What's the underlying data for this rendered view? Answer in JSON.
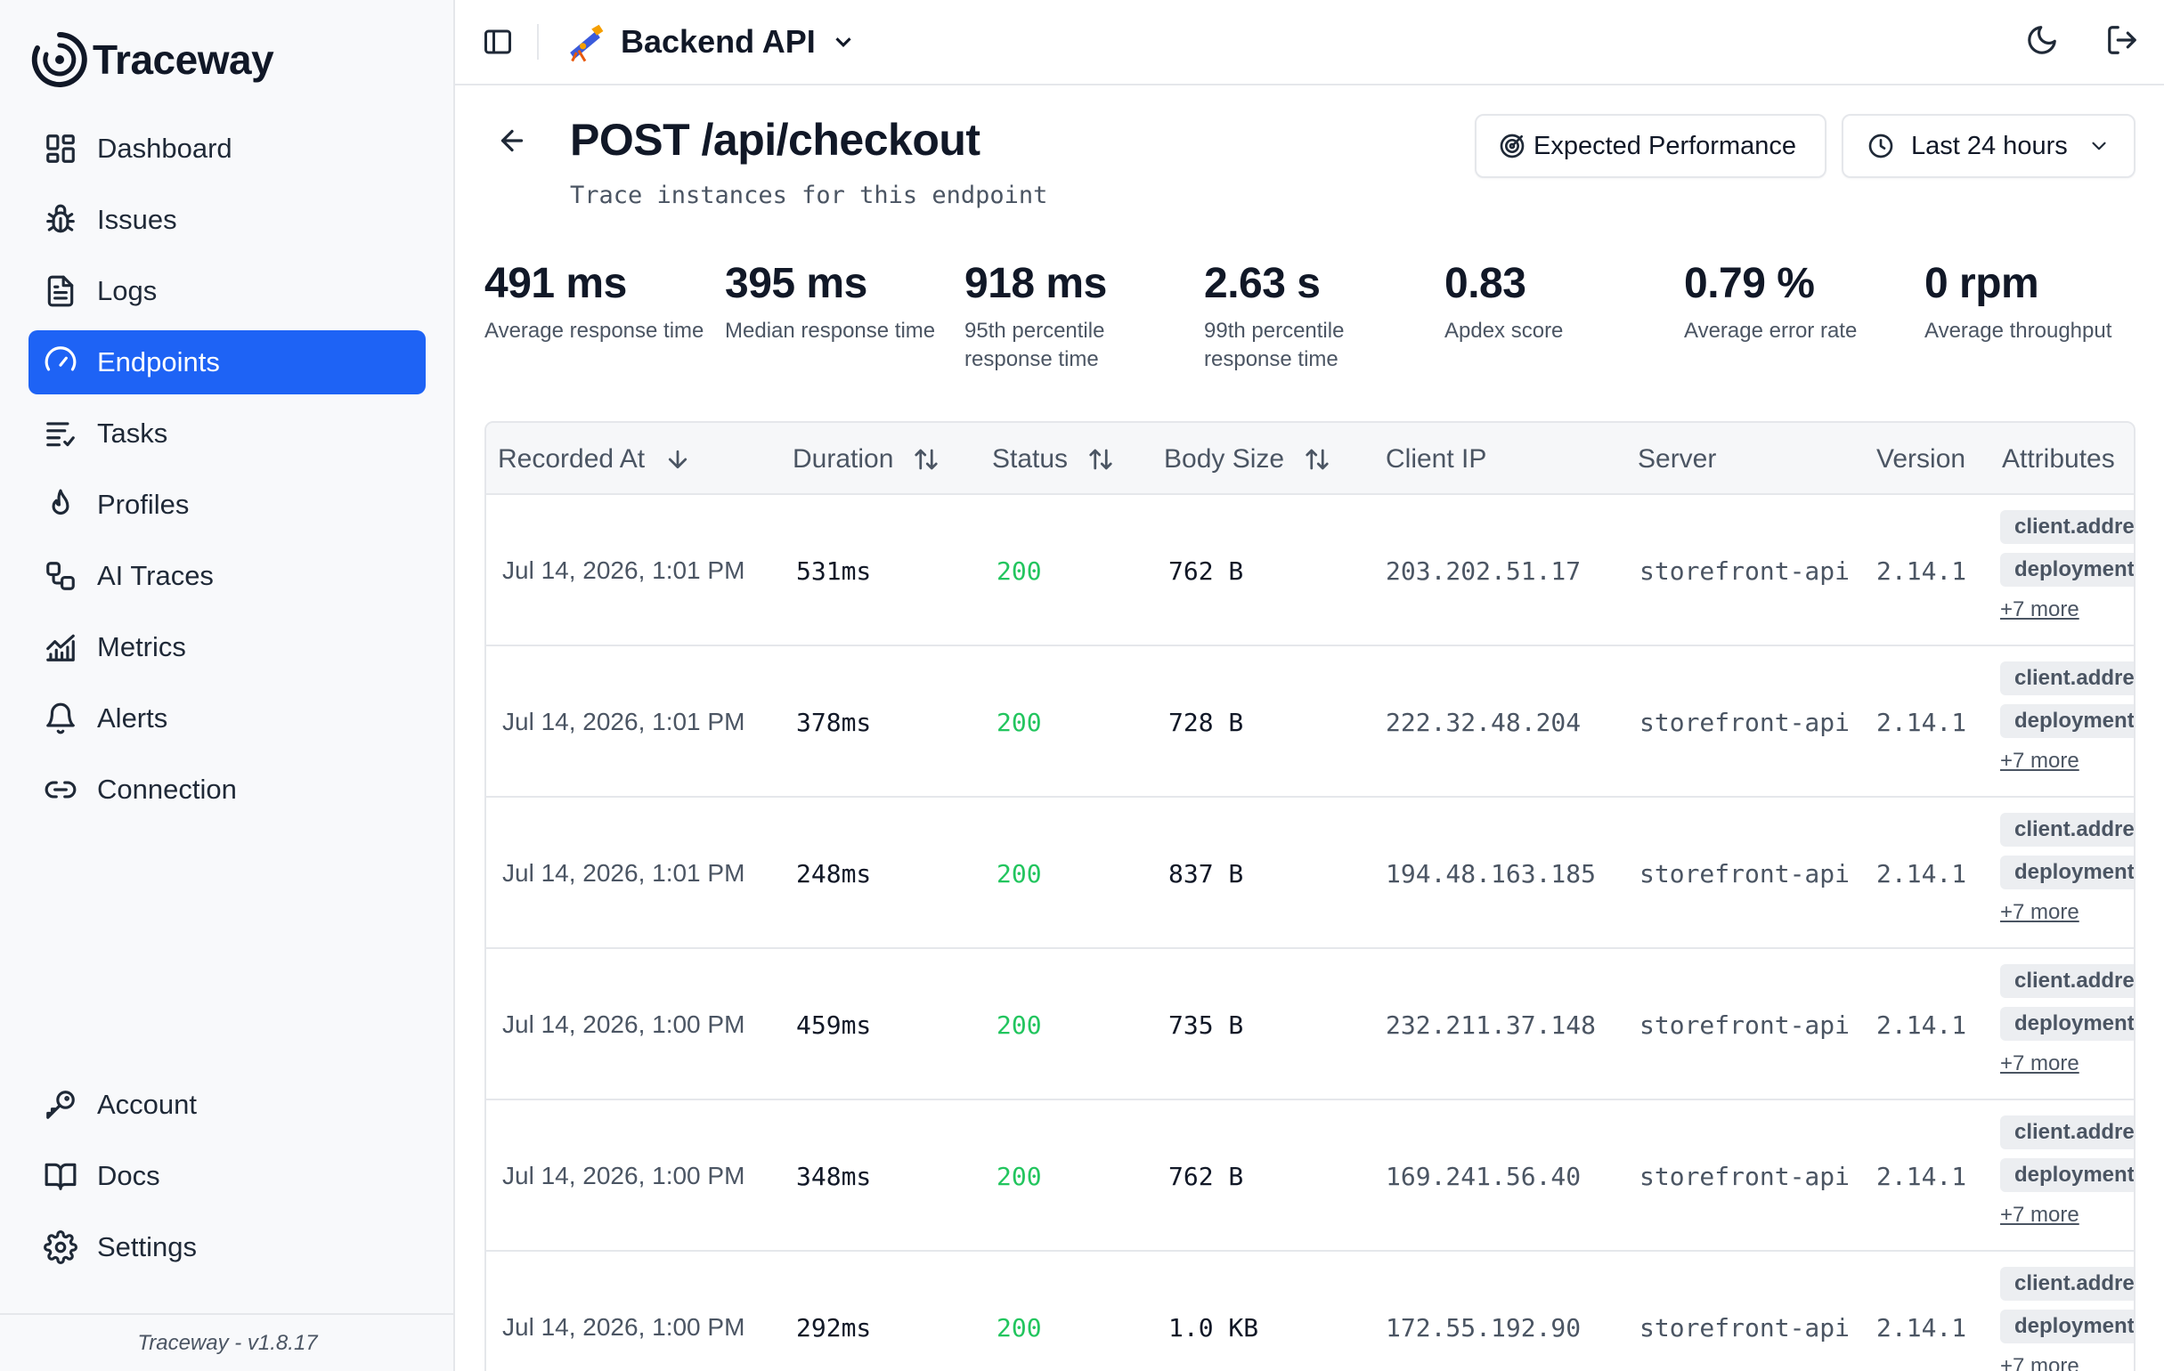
{
  "app": {
    "name": "Traceway",
    "version_footer": "Traceway - v1.8.17"
  },
  "nav": {
    "top": [
      {
        "label": "Dashboard",
        "icon": "dashboard-icon"
      },
      {
        "label": "Issues",
        "icon": "bug-icon"
      },
      {
        "label": "Logs",
        "icon": "file-text-icon"
      },
      {
        "label": "Endpoints",
        "icon": "gauge-icon",
        "active": true
      },
      {
        "label": "Tasks",
        "icon": "list-tasks-icon"
      },
      {
        "label": "Profiles",
        "icon": "flame-icon"
      },
      {
        "label": "AI Traces",
        "icon": "workflow-icon"
      },
      {
        "label": "Metrics",
        "icon": "chart-line-icon"
      },
      {
        "label": "Alerts",
        "icon": "bell-icon"
      },
      {
        "label": "Connection",
        "icon": "link-icon"
      }
    ],
    "bottom": [
      {
        "label": "Account",
        "icon": "key-icon"
      },
      {
        "label": "Docs",
        "icon": "book-icon"
      },
      {
        "label": "Settings",
        "icon": "gear-icon"
      }
    ]
  },
  "topbar": {
    "project_name": "Backend API"
  },
  "header": {
    "title": "POST /api/checkout",
    "subtitle": "Trace instances for this endpoint",
    "perf_button": "Expected Performance",
    "range_button": "Last 24 hours"
  },
  "stats": [
    {
      "value": "491 ms",
      "label": "Average response time"
    },
    {
      "value": "395 ms",
      "label": "Median response time"
    },
    {
      "value": "918 ms",
      "label": "95th percentile response time"
    },
    {
      "value": "2.63 s",
      "label": "99th percentile response time"
    },
    {
      "value": "0.83",
      "label": "Apdex score"
    },
    {
      "value": "0.79 %",
      "label": "Average error rate"
    },
    {
      "value": "0 rpm",
      "label": "Average throughput"
    }
  ],
  "table": {
    "columns": [
      "Recorded At",
      "Duration",
      "Status",
      "Body Size",
      "Client IP",
      "Server",
      "Version",
      "Attributes"
    ],
    "rows": [
      {
        "recorded_at": "Jul 14, 2026, 1:01 PM",
        "duration": "531ms",
        "status": "200",
        "body_size": "762 B",
        "client_ip": "203.202.51.17",
        "server": "storefront-api",
        "version": "2.14.1",
        "attr1": "client.address",
        "attr2": "deployment",
        "more": "+7 more"
      },
      {
        "recorded_at": "Jul 14, 2026, 1:01 PM",
        "duration": "378ms",
        "status": "200",
        "body_size": "728 B",
        "client_ip": "222.32.48.204",
        "server": "storefront-api",
        "version": "2.14.1",
        "attr1": "client.address",
        "attr2": "deployment",
        "more": "+7 more"
      },
      {
        "recorded_at": "Jul 14, 2026, 1:01 PM",
        "duration": "248ms",
        "status": "200",
        "body_size": "837 B",
        "client_ip": "194.48.163.185",
        "server": "storefront-api",
        "version": "2.14.1",
        "attr1": "client.address",
        "attr2": "deployment",
        "more": "+7 more"
      },
      {
        "recorded_at": "Jul 14, 2026, 1:00 PM",
        "duration": "459ms",
        "status": "200",
        "body_size": "735 B",
        "client_ip": "232.211.37.148",
        "server": "storefront-api",
        "version": "2.14.1",
        "attr1": "client.address",
        "attr2": "deployment",
        "more": "+7 more"
      },
      {
        "recorded_at": "Jul 14, 2026, 1:00 PM",
        "duration": "348ms",
        "status": "200",
        "body_size": "762 B",
        "client_ip": "169.241.56.40",
        "server": "storefront-api",
        "version": "2.14.1",
        "attr1": "client.address",
        "attr2": "deployment",
        "more": "+7 more"
      },
      {
        "recorded_at": "Jul 14, 2026, 1:00 PM",
        "duration": "292ms",
        "status": "200",
        "body_size": "1.0 KB",
        "client_ip": "172.55.192.90",
        "server": "storefront-api",
        "version": "2.14.1",
        "attr1": "client.address",
        "attr2": "deployment",
        "more": "+7 more"
      }
    ]
  },
  "colors": {
    "accent": "#1e63f5",
    "status_ok": "#22c55e",
    "sidebar_bg": "#f8f9fb"
  }
}
